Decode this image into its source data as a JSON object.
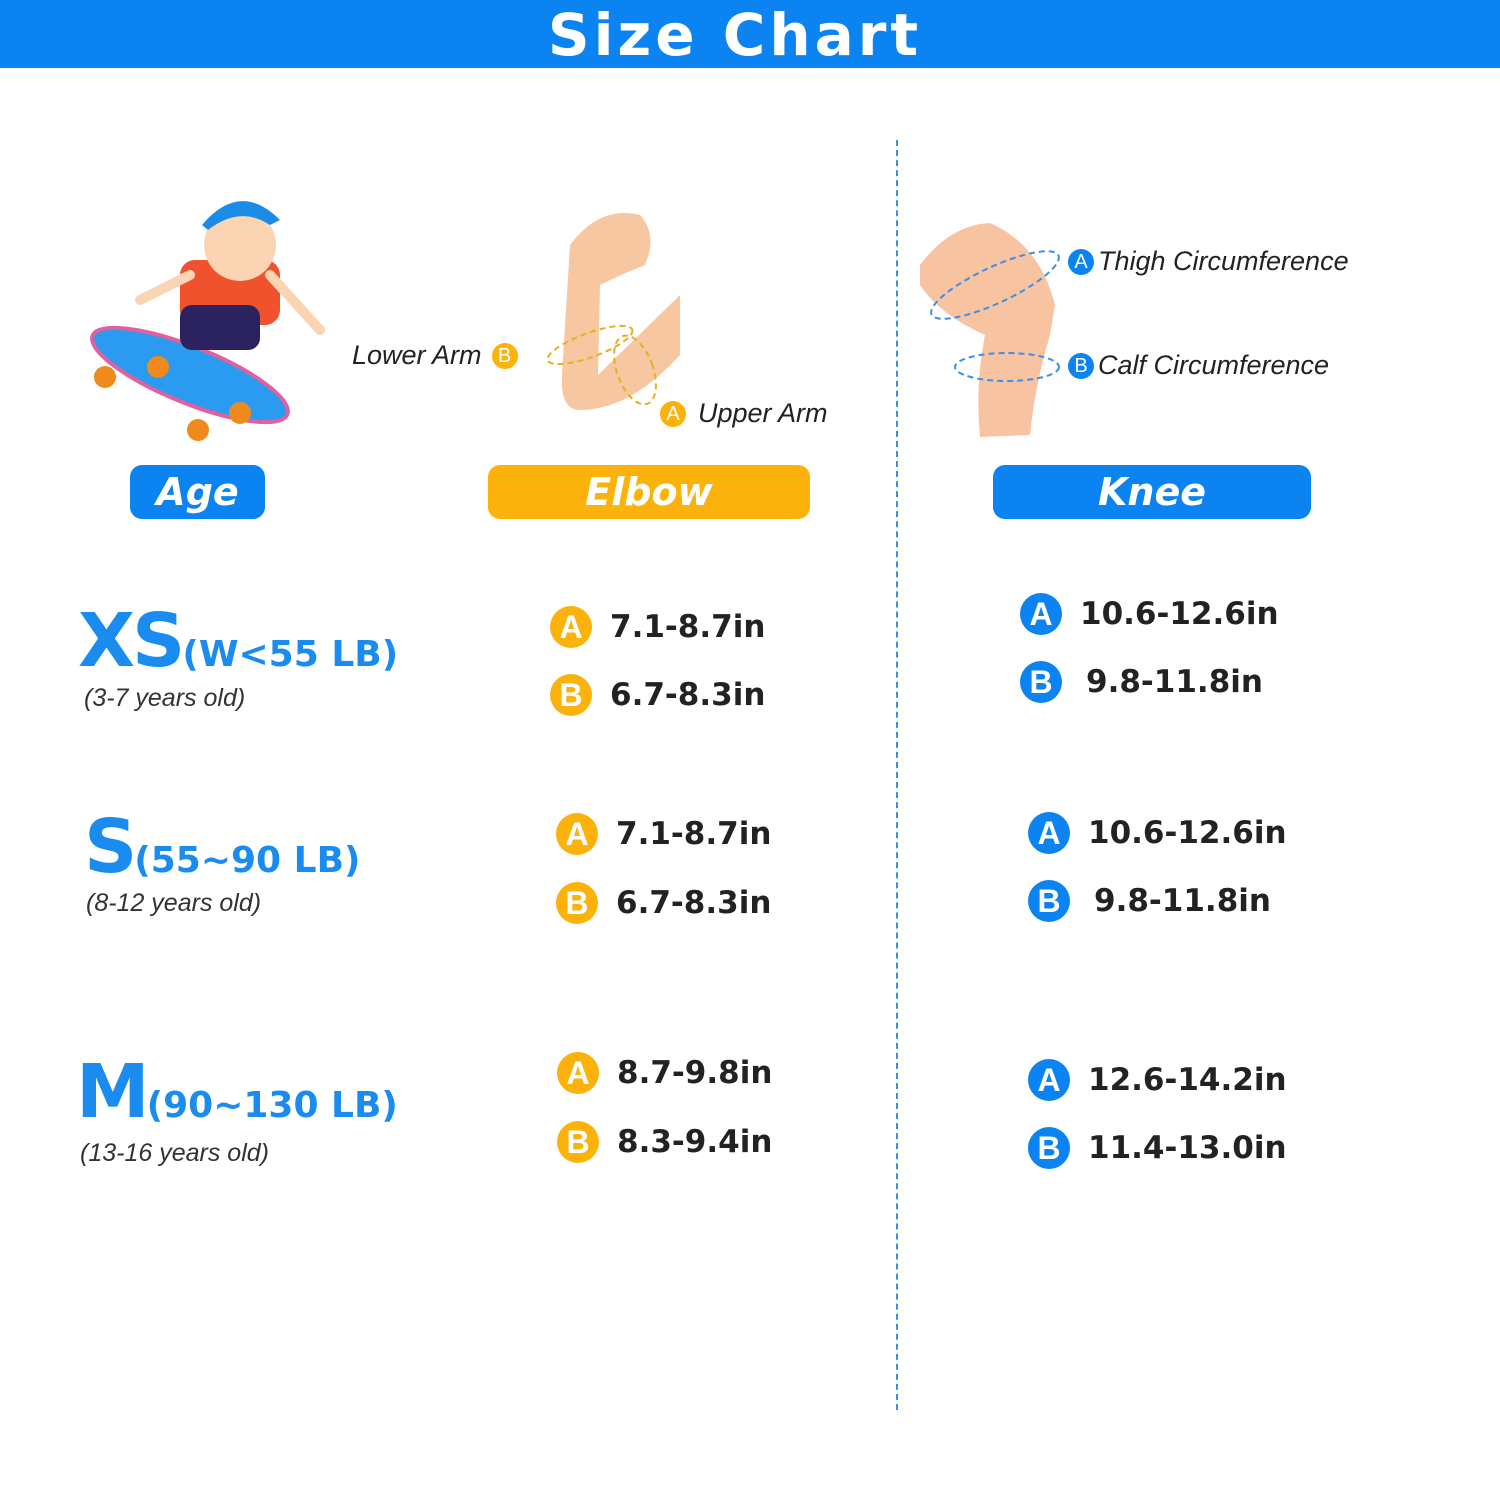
{
  "title": "Size Chart",
  "colors": {
    "blue": "#0b84f2",
    "yellow": "#fbb30c"
  },
  "headers": {
    "age": "Age",
    "elbow": "Elbow",
    "knee": "Knee"
  },
  "elbow_diagram": {
    "lower_arm": "Lower Arm",
    "upper_arm": "Upper Arm",
    "badge_a": "A",
    "badge_b": "B"
  },
  "knee_diagram": {
    "thigh": "Thigh Circumference",
    "calf": "Calf Circumference",
    "badge_a": "A",
    "badge_b": "B"
  },
  "rows": [
    {
      "size": "XS",
      "weight": "(W<55 LB)",
      "age": "(3-7 years old)",
      "elbow_a": "7.1-8.7in",
      "elbow_b": "6.7-8.3in",
      "knee_a": "10.6-12.6in",
      "knee_b": "9.8-11.8in"
    },
    {
      "size": "S",
      "weight": "(55~90 LB)",
      "age": "(8-12 years old)",
      "elbow_a": "7.1-8.7in",
      "elbow_b": "6.7-8.3in",
      "knee_a": "10.6-12.6in",
      "knee_b": "9.8-11.8in"
    },
    {
      "size": "M",
      "weight": "(90~130 LB)",
      "age": "(13-16 years old)",
      "elbow_a": "8.7-9.8in",
      "elbow_b": "8.3-9.4in",
      "knee_a": "12.6-14.2in",
      "knee_b": "11.4-13.0in"
    }
  ]
}
